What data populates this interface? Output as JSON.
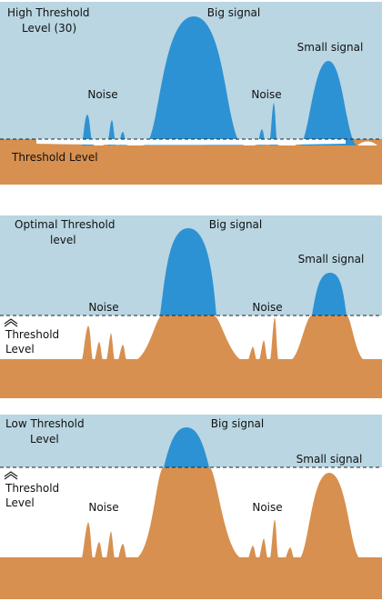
{
  "colors": {
    "sky": "#b9d6e2",
    "signal": "#2d92d3",
    "ground": "#d7904f",
    "white": "#ffffff",
    "line": "#222222"
  },
  "panels": [
    {
      "id": "high",
      "title_lines": [
        "High Threshold",
        "Level (30)"
      ],
      "big_signal": "Big signal",
      "small_signal": "Small signal",
      "noise_left": "Noise",
      "noise_right": "Noise",
      "threshold_label": "Threshold Level"
    },
    {
      "id": "optimal",
      "title_lines": [
        "Optimal Threshold",
        "level"
      ],
      "big_signal": "Big signal",
      "small_signal": "Small signal",
      "noise_left": "Noise",
      "noise_right": "Noise",
      "threshold_label_lines": [
        "Threshold",
        "Level"
      ]
    },
    {
      "id": "low",
      "title_lines": [
        "Low Threshold",
        "Level"
      ],
      "big_signal": "Big signal",
      "small_signal": "Small signal",
      "noise_left": "Noise",
      "noise_right": "Noise",
      "threshold_label_lines": [
        "Threshold",
        "Level"
      ]
    }
  ]
}
